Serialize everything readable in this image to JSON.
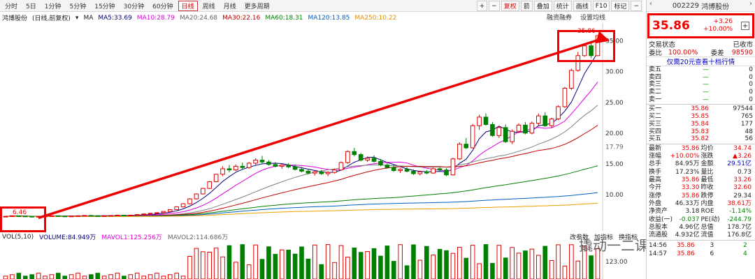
{
  "toolbar": {
    "periods": [
      "分时",
      "5日",
      "1分钟",
      "5分钟",
      "15分钟",
      "30分钟",
      "60分钟",
      "日线",
      "周线",
      "月线",
      "更多周期"
    ],
    "active_period": "日线",
    "right_buttons": [
      "+",
      "−",
      "复权",
      "箭",
      "叠加",
      "统计",
      "画线",
      "F10",
      "标记",
      "−"
    ],
    "sub_buttons": [
      "融资融券",
      "设置均线"
    ]
  },
  "legend": {
    "stock": "鸿博股份",
    "mode": "(日线,前复权)",
    "ma_label": "MA",
    "ma5": "MA5:33.69",
    "ma10": "MA10:28.79",
    "ma20": "MA20:24.68",
    "ma30": "MA30:22.16",
    "ma60": "MA60:18.31",
    "ma120": "MA120:13.85",
    "ma250": "MA250:10.22"
  },
  "price_axis": {
    "labels": [
      "35.00",
      "30.00",
      "25.00",
      "20.00",
      "17.79",
      "15.00",
      "10.00"
    ],
    "last_price_label": "35.86",
    "low_label": "6.46"
  },
  "volume": {
    "legend": [
      "VOL(5,10)",
      "VOLUME:84.949万",
      "MAVOL1:125.256万",
      "MAVOL2:114.686万"
    ],
    "axis_label": "123.00",
    "buttons": [
      "改参数",
      "加指标",
      "换指标"
    ]
  },
  "colors": {
    "up": "#e00000",
    "down": "#008000",
    "ma5": "#000080",
    "ma10": "#e000e0",
    "ma20": "#808080",
    "ma30": "#c00000",
    "ma60": "#008000",
    "ma120": "#0060c0",
    "ma250": "#f0a000"
  },
  "chart_data": {
    "type": "candlestick",
    "approx_ohlc": [
      [
        6.4,
        6.5,
        6.3,
        6.46
      ],
      [
        6.46,
        6.6,
        6.4,
        6.55
      ],
      [
        6.55,
        6.6,
        6.4,
        6.5
      ],
      [
        6.5,
        6.55,
        6.4,
        6.45
      ],
      [
        6.45,
        6.5,
        6.35,
        6.4
      ],
      [
        6.4,
        6.5,
        6.3,
        6.45
      ],
      [
        6.45,
        6.55,
        6.4,
        6.5
      ],
      [
        6.5,
        6.6,
        6.45,
        6.55
      ],
      [
        6.55,
        6.6,
        6.45,
        6.5
      ],
      [
        6.5,
        6.55,
        6.4,
        6.45
      ],
      [
        6.45,
        6.55,
        6.4,
        6.5
      ],
      [
        6.5,
        6.6,
        6.45,
        6.55
      ],
      [
        6.55,
        6.65,
        6.5,
        6.6
      ],
      [
        6.6,
        6.65,
        6.5,
        6.55
      ],
      [
        6.55,
        6.6,
        6.45,
        6.5
      ],
      [
        6.5,
        6.6,
        6.45,
        6.55
      ],
      [
        6.55,
        6.65,
        6.5,
        6.6
      ],
      [
        6.6,
        6.7,
        6.55,
        6.65
      ],
      [
        6.65,
        6.7,
        6.55,
        6.6
      ],
      [
        6.6,
        6.7,
        6.55,
        6.65
      ],
      [
        6.65,
        6.8,
        6.6,
        6.75
      ],
      [
        6.75,
        6.9,
        6.7,
        6.85
      ],
      [
        6.85,
        7.0,
        6.8,
        6.95
      ],
      [
        6.95,
        7.1,
        6.9,
        7.05
      ],
      [
        7.05,
        7.3,
        7.0,
        7.25
      ],
      [
        7.25,
        7.6,
        7.2,
        7.55
      ],
      [
        7.55,
        8.1,
        7.5,
        8.0
      ],
      [
        8.0,
        8.6,
        7.9,
        8.5
      ],
      [
        8.5,
        9.4,
        8.4,
        9.3
      ],
      [
        9.3,
        10.2,
        9.2,
        10.1
      ],
      [
        10.1,
        11.1,
        10.0,
        11.0
      ],
      [
        11.0,
        12.2,
        10.9,
        12.1
      ],
      [
        12.1,
        13.4,
        12.0,
        13.3
      ],
      [
        13.3,
        14.6,
        13.0,
        14.2
      ],
      [
        14.2,
        14.8,
        13.6,
        14.0
      ],
      [
        14.0,
        14.9,
        13.8,
        14.6
      ],
      [
        14.6,
        15.2,
        14.1,
        14.4
      ],
      [
        14.4,
        15.3,
        14.2,
        15.1
      ],
      [
        15.1,
        15.9,
        14.8,
        15.6
      ],
      [
        15.6,
        16.3,
        15.0,
        15.3
      ],
      [
        15.3,
        15.6,
        14.7,
        14.9
      ],
      [
        14.9,
        15.3,
        14.4,
        14.6
      ],
      [
        14.6,
        15.0,
        14.2,
        14.8
      ],
      [
        14.8,
        15.1,
        14.3,
        14.5
      ],
      [
        14.5,
        14.9,
        13.9,
        14.1
      ],
      [
        14.1,
        14.5,
        13.6,
        13.8
      ],
      [
        13.8,
        14.2,
        13.3,
        13.5
      ],
      [
        13.5,
        13.9,
        13.1,
        13.7
      ],
      [
        13.7,
        14.0,
        13.2,
        13.4
      ],
      [
        13.4,
        13.8,
        13.0,
        13.6
      ],
      [
        13.6,
        14.2,
        13.4,
        14.0
      ],
      [
        14.0,
        15.4,
        13.9,
        15.2
      ],
      [
        15.2,
        17.2,
        15.0,
        17.0
      ],
      [
        17.0,
        17.6,
        16.2,
        16.5
      ],
      [
        16.5,
        16.8,
        15.4,
        15.6
      ],
      [
        15.6,
        16.2,
        15.3,
        15.9
      ],
      [
        15.9,
        16.4,
        15.2,
        15.4
      ],
      [
        15.4,
        15.8,
        14.6,
        14.8
      ],
      [
        14.8,
        15.2,
        14.2,
        14.4
      ],
      [
        14.4,
        14.8,
        13.7,
        13.9
      ],
      [
        13.9,
        14.3,
        13.5,
        14.1
      ],
      [
        14.1,
        14.5,
        13.6,
        13.8
      ],
      [
        13.8,
        14.1,
        13.2,
        13.4
      ],
      [
        13.4,
        13.9,
        13.1,
        13.7
      ],
      [
        13.7,
        14.0,
        13.3,
        13.5
      ],
      [
        13.5,
        14.4,
        13.4,
        14.2
      ],
      [
        14.2,
        14.6,
        13.8,
        14.0
      ],
      [
        14.0,
        14.3,
        13.0,
        13.2
      ],
      [
        13.2,
        16.0,
        13.1,
        15.8
      ],
      [
        15.8,
        18.5,
        15.6,
        18.2
      ],
      [
        18.2,
        19.2,
        17.4,
        17.6
      ],
      [
        17.6,
        21.5,
        17.5,
        21.2
      ],
      [
        21.2,
        23.0,
        20.5,
        22.6
      ],
      [
        22.6,
        23.2,
        21.2,
        21.4
      ],
      [
        21.4,
        21.8,
        19.4,
        19.6
      ],
      [
        19.6,
        21.2,
        19.2,
        20.9
      ],
      [
        20.9,
        21.4,
        18.4,
        18.6
      ],
      [
        18.6,
        20.6,
        18.2,
        20.3
      ],
      [
        20.3,
        21.6,
        20.0,
        21.3
      ],
      [
        21.3,
        21.8,
        19.8,
        20.0
      ],
      [
        20.0,
        21.9,
        19.8,
        21.6
      ],
      [
        21.6,
        23.2,
        21.2,
        22.8
      ],
      [
        22.8,
        23.4,
        21.0,
        21.2
      ],
      [
        21.2,
        22.5,
        20.8,
        22.3
      ],
      [
        22.3,
        24.5,
        22.1,
        24.3
      ],
      [
        24.3,
        27.5,
        24.1,
        27.3
      ],
      [
        27.3,
        30.5,
        27.0,
        30.2
      ],
      [
        30.2,
        33.2,
        30.0,
        32.6
      ],
      [
        32.6,
        34.4,
        32.4,
        34.2
      ],
      [
        34.2,
        35.0,
        32.2,
        32.6
      ],
      [
        32.6,
        35.86,
        32.5,
        35.86
      ]
    ]
  },
  "panel": {
    "code": "002229",
    "name": "鸿博股份",
    "price": "35.86",
    "change": "+3.26",
    "pct": "+10.00%",
    "status_label": "交易状态",
    "status_value": "已收市",
    "weibi_label": "委比",
    "weibi_value": "100.00%",
    "weicha_label": "委差",
    "weicha_value": "98590",
    "link": "仅需20元查看十档行情",
    "sell": [
      {
        "label": "卖五",
        "price": "—",
        "vol": "0"
      },
      {
        "label": "卖四",
        "price": "—",
        "vol": "0"
      },
      {
        "label": "卖三",
        "price": "—",
        "vol": "0"
      },
      {
        "label": "卖二",
        "price": "—",
        "vol": "0"
      },
      {
        "label": "卖一",
        "price": "—",
        "vol": "0"
      }
    ],
    "buy": [
      {
        "label": "买一",
        "price": "35.86",
        "vol": "97544"
      },
      {
        "label": "买二",
        "price": "35.85",
        "vol": "765"
      },
      {
        "label": "买三",
        "price": "35.84",
        "vol": "177"
      },
      {
        "label": "买四",
        "price": "35.83",
        "vol": "48"
      },
      {
        "label": "买五",
        "price": "35.82",
        "vol": "56"
      }
    ],
    "stats": [
      [
        "最新",
        "35.86",
        "均价",
        "34.74"
      ],
      [
        "涨幅",
        "+10.00%",
        "涨跌",
        "▲3.26"
      ],
      [
        "总手",
        "84.95万",
        "金额",
        "29.51亿"
      ],
      [
        "换手",
        "17.23%",
        "量比",
        "0.73"
      ],
      [
        "最高",
        "35.86",
        "最低",
        "33.26"
      ],
      [
        "今开",
        "33.30",
        "昨收",
        "32.60"
      ],
      [
        "涨停",
        "35.86",
        "跌停",
        "29.34"
      ],
      [
        "外盘",
        "46.33万",
        "内盘",
        "38.61万"
      ],
      [
        "净资产",
        "3.18",
        "ROE",
        "-1.14%"
      ],
      [
        "收益(一)",
        "-0.037",
        "PE(动)",
        "-244.79"
      ],
      [
        "总股本",
        "4.96亿",
        "总值",
        "178.7亿"
      ],
      [
        "流通股",
        "4.932亿",
        "流值",
        "176.8亿"
      ]
    ],
    "ticks": [
      [
        "14:56",
        "35.86",
        "3",
        "2"
      ],
      [
        "14:57",
        "35.86",
        "6",
        "4"
      ]
    ]
  },
  "watermark": "撬动一二课"
}
